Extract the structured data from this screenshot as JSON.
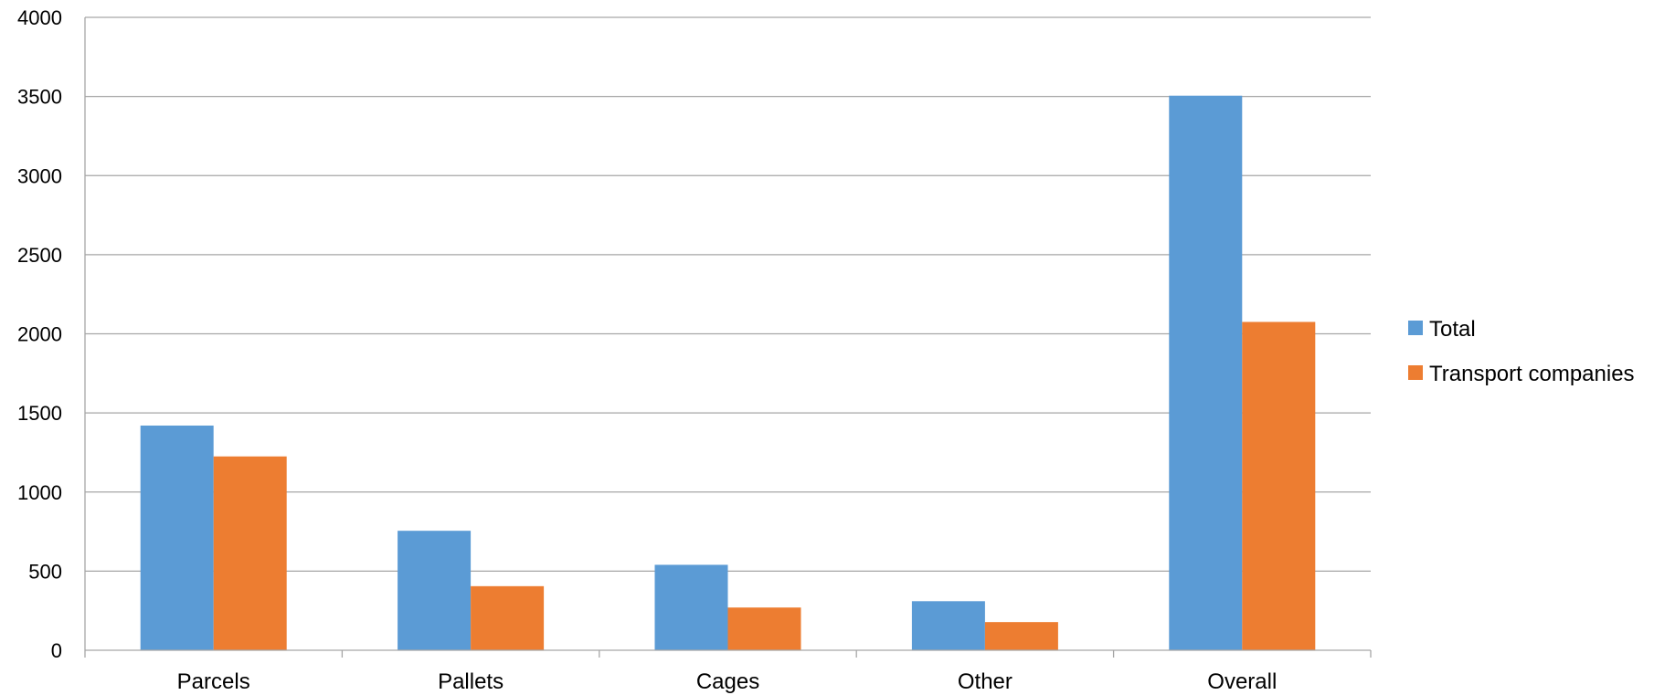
{
  "chart_data": {
    "type": "bar",
    "categories": [
      "Parcels",
      "Pallets",
      "Cages",
      "Other",
      "Overall"
    ],
    "series": [
      {
        "name": "Total",
        "color": "#5B9BD5",
        "values": [
          1420,
          755,
          540,
          310,
          3505
        ]
      },
      {
        "name": "Transport companies",
        "color": "#ED7D31",
        "values": [
          1225,
          405,
          270,
          178,
          2075
        ]
      }
    ],
    "ylim": [
      0,
      4000
    ],
    "yticks": [
      0,
      500,
      1000,
      1500,
      2000,
      2500,
      3000,
      3500,
      4000
    ],
    "ytick_labels": [
      "0",
      "500",
      "1000",
      "1500",
      "2000",
      "2500",
      "3000",
      "3500",
      "4000"
    ],
    "grid": true,
    "legend": "right",
    "title": "",
    "xlabel": "",
    "ylabel": ""
  }
}
